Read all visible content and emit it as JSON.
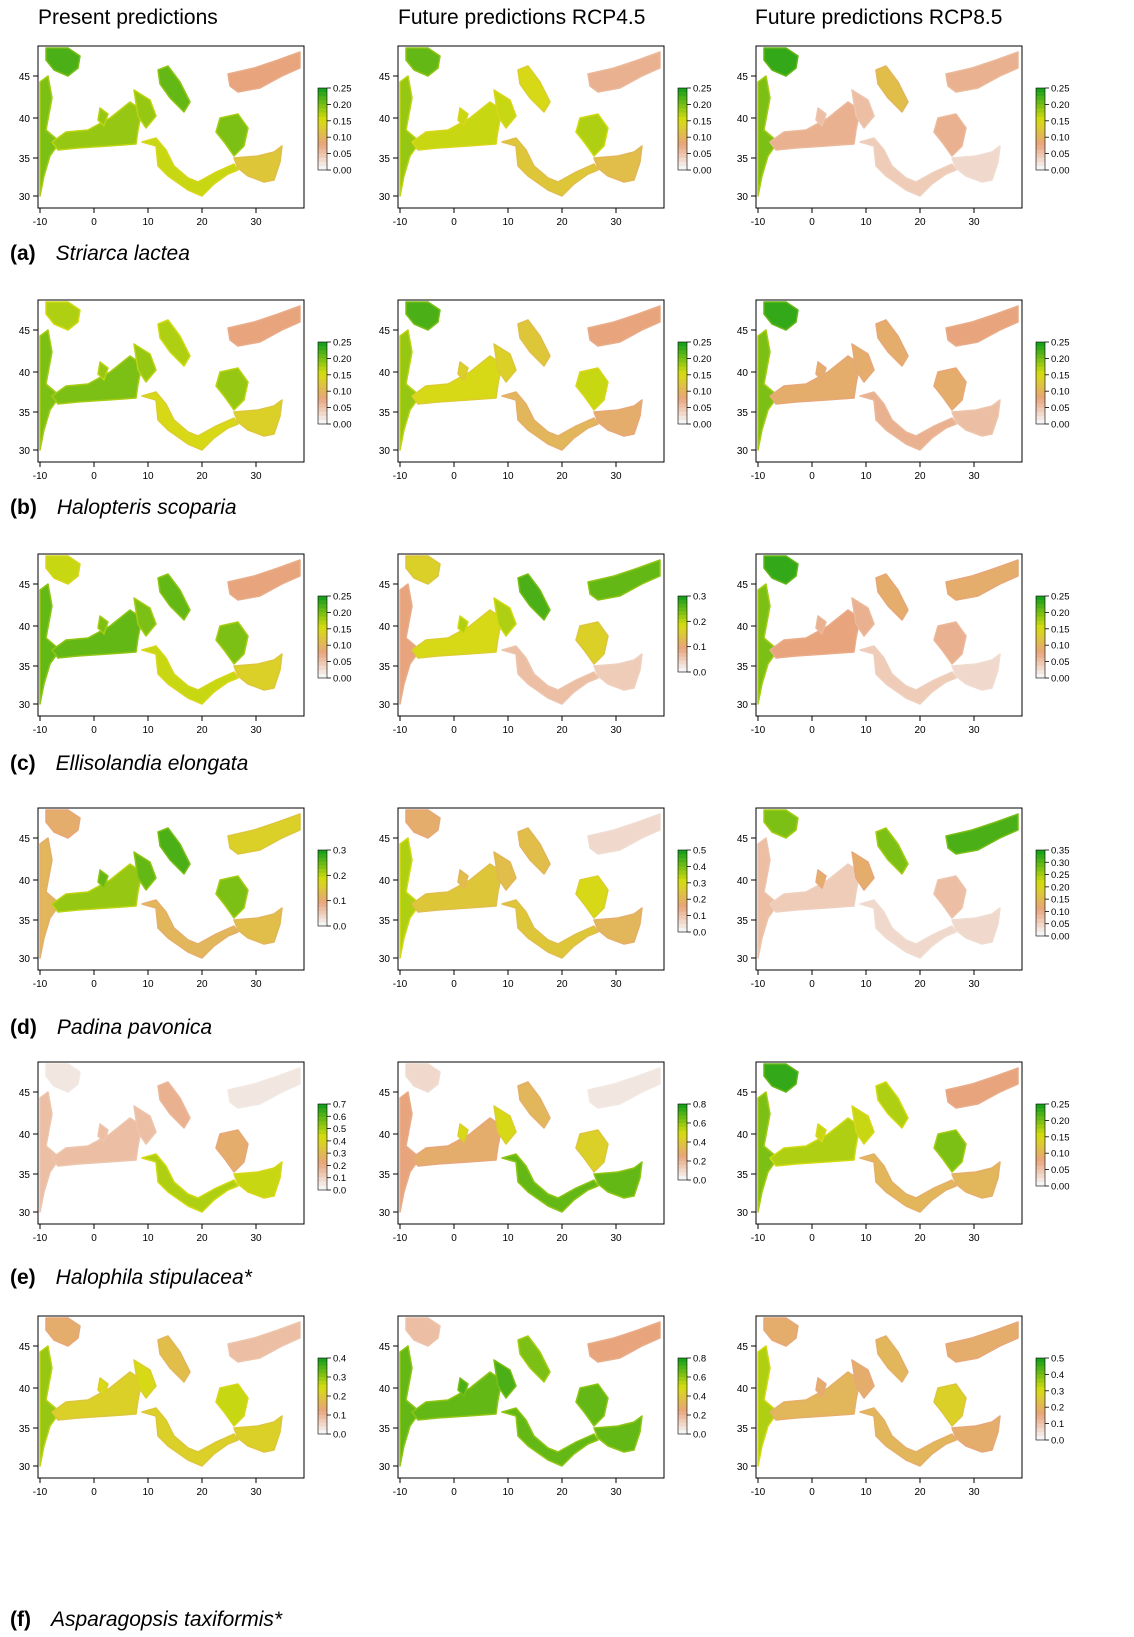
{
  "columns": [
    "Present predictions",
    "Future predictions RCP4.5",
    "Future predictions RCP8.5"
  ],
  "x_ticks": [
    "-10",
    "0",
    "10",
    "20",
    "30"
  ],
  "y_ticks": [
    "30",
    "35",
    "40",
    "45"
  ],
  "colors": {
    "high": "#1aa01a",
    "mid": "#d6dc10",
    "low": "#e8a47c",
    "min": "#f4f4f4"
  },
  "rows": [
    {
      "letter": "(a)",
      "species": "Striarca lactea",
      "panels": [
        {
          "legend_ticks": [
            "0.25",
            "0.20",
            "0.15",
            "0.10",
            "0.05",
            "0.00"
          ],
          "shades": {
            "nw": 0.9,
            "west": 0.8,
            "wm": 0.75,
            "tyr": 0.75,
            "adr": 0.85,
            "aeg": 0.8,
            "bs": 0.3,
            "em": 0.5,
            "south": 0.65
          }
        },
        {
          "legend_ticks": [
            "0.25",
            "0.20",
            "0.15",
            "0.10",
            "0.05",
            "0.00"
          ],
          "shades": {
            "nw": 0.85,
            "west": 0.75,
            "wm": 0.65,
            "tyr": 0.65,
            "adr": 0.6,
            "aeg": 0.7,
            "bs": 0.25,
            "em": 0.45,
            "south": 0.5
          }
        },
        {
          "legend_ticks": [
            "0.25",
            "0.20",
            "0.15",
            "0.10",
            "0.05",
            "0.00"
          ],
          "shades": {
            "nw": 0.95,
            "west": 0.8,
            "wm": 0.25,
            "tyr": 0.2,
            "adr": 0.45,
            "aeg": 0.25,
            "bs": 0.25,
            "em": 0.1,
            "south": 0.15
          }
        }
      ]
    },
    {
      "letter": "(b)",
      "species": "Halopteris scoparia",
      "panels": [
        {
          "legend_ticks": [
            "0.25",
            "0.20",
            "0.15",
            "0.10",
            "0.05",
            "0.00"
          ],
          "shades": {
            "nw": 0.7,
            "west": 0.8,
            "wm": 0.8,
            "tyr": 0.75,
            "adr": 0.7,
            "aeg": 0.75,
            "bs": 0.3,
            "em": 0.55,
            "south": 0.6
          }
        },
        {
          "legend_ticks": [
            "0.25",
            "0.20",
            "0.15",
            "0.10",
            "0.05",
            "0.00"
          ],
          "shades": {
            "nw": 0.9,
            "west": 0.75,
            "wm": 0.6,
            "tyr": 0.55,
            "adr": 0.5,
            "aeg": 0.65,
            "bs": 0.3,
            "em": 0.35,
            "south": 0.4
          }
        },
        {
          "legend_ticks": [
            "0.25",
            "0.20",
            "0.15",
            "0.10",
            "0.05",
            "0.00"
          ],
          "shades": {
            "nw": 0.95,
            "west": 0.8,
            "wm": 0.35,
            "tyr": 0.35,
            "adr": 0.35,
            "aeg": 0.35,
            "bs": 0.3,
            "em": 0.2,
            "south": 0.25
          }
        }
      ]
    },
    {
      "letter": "(c)",
      "species": "Ellisolandia elongata",
      "panels": [
        {
          "legend_ticks": [
            "0.25",
            "0.20",
            "0.15",
            "0.10",
            "0.05",
            "0.00"
          ],
          "shades": {
            "nw": 0.65,
            "west": 0.85,
            "wm": 0.85,
            "tyr": 0.8,
            "adr": 0.85,
            "aeg": 0.8,
            "bs": 0.3,
            "em": 0.55,
            "south": 0.65
          }
        },
        {
          "legend_ticks": [
            "0.3",
            "0.2",
            "0.1",
            "0.0"
          ],
          "shades": {
            "nw": 0.55,
            "west": 0.3,
            "wm": 0.6,
            "tyr": 0.7,
            "adr": 0.9,
            "aeg": 0.55,
            "bs": 0.85,
            "em": 0.15,
            "south": 0.2
          }
        },
        {
          "legend_ticks": [
            "0.25",
            "0.20",
            "0.15",
            "0.10",
            "0.05",
            "0.00"
          ],
          "shades": {
            "nw": 0.95,
            "west": 0.8,
            "wm": 0.3,
            "tyr": 0.25,
            "adr": 0.35,
            "aeg": 0.25,
            "bs": 0.35,
            "em": 0.1,
            "south": 0.15
          }
        }
      ]
    },
    {
      "letter": "(d)",
      "species": "Padina pavonica",
      "panels": [
        {
          "legend_ticks": [
            "0.3",
            "0.2",
            "0.1",
            "0.0"
          ],
          "shades": {
            "nw": 0.35,
            "west": 0.4,
            "wm": 0.75,
            "tyr": 0.85,
            "adr": 0.9,
            "aeg": 0.8,
            "bs": 0.55,
            "em": 0.45,
            "south": 0.4
          }
        },
        {
          "legend_ticks": [
            "0.5",
            "0.4",
            "0.3",
            "0.2",
            "0.1",
            "0.0"
          ],
          "shades": {
            "nw": 0.35,
            "west": 0.7,
            "wm": 0.5,
            "tyr": 0.45,
            "adr": 0.45,
            "aeg": 0.6,
            "bs": 0.1,
            "em": 0.4,
            "south": 0.5
          }
        },
        {
          "legend_ticks": [
            "0.35",
            "0.30",
            "0.25",
            "0.20",
            "0.15",
            "0.10",
            "0.05",
            "0.00"
          ],
          "shades": {
            "nw": 0.8,
            "west": 0.2,
            "wm": 0.15,
            "tyr": 0.35,
            "adr": 0.8,
            "aeg": 0.2,
            "bs": 0.9,
            "em": 0.1,
            "south": 0.1
          }
        }
      ]
    },
    {
      "letter": "(e)",
      "species": "Halophila stipulacea*",
      "panels": [
        {
          "legend_ticks": [
            "0.7",
            "0.6",
            "0.5",
            "0.4",
            "0.3",
            "0.2",
            "0.1",
            "0.0"
          ],
          "shades": {
            "nw": 0.05,
            "west": 0.2,
            "wm": 0.2,
            "tyr": 0.2,
            "adr": 0.25,
            "aeg": 0.35,
            "bs": 0.05,
            "em": 0.65,
            "south": 0.7
          }
        },
        {
          "legend_ticks": [
            "0.8",
            "0.6",
            "0.4",
            "0.2",
            "0.0"
          ],
          "shades": {
            "nw": 0.1,
            "west": 0.3,
            "wm": 0.35,
            "tyr": 0.6,
            "adr": 0.4,
            "aeg": 0.55,
            "bs": 0.05,
            "em": 0.85,
            "south": 0.85
          }
        },
        {
          "legend_ticks": [
            "0.25",
            "0.20",
            "0.15",
            "0.10",
            "0.05",
            "0.00"
          ],
          "shades": {
            "nw": 0.95,
            "west": 0.8,
            "wm": 0.7,
            "tyr": 0.65,
            "adr": 0.7,
            "aeg": 0.8,
            "bs": 0.3,
            "em": 0.4,
            "south": 0.4
          }
        }
      ]
    },
    {
      "letter": "(f)",
      "species": "Asparagopsis taxiformis*",
      "panels": [
        {
          "legend_ticks": [
            "0.4",
            "0.3",
            "0.2",
            "0.1",
            "0.0"
          ],
          "shades": {
            "nw": 0.35,
            "west": 0.75,
            "wm": 0.55,
            "tyr": 0.6,
            "adr": 0.45,
            "aeg": 0.65,
            "bs": 0.2,
            "em": 0.55,
            "south": 0.55
          }
        },
        {
          "legend_ticks": [
            "0.8",
            "0.6",
            "0.4",
            "0.2",
            "0.0"
          ],
          "shades": {
            "nw": 0.2,
            "west": 0.85,
            "wm": 0.85,
            "tyr": 0.9,
            "adr": 0.8,
            "aeg": 0.85,
            "bs": 0.3,
            "em": 0.85,
            "south": 0.85
          }
        },
        {
          "legend_ticks": [
            "0.5",
            "0.4",
            "0.3",
            "0.2",
            "0.1",
            "0.0"
          ],
          "shades": {
            "nw": 0.35,
            "west": 0.7,
            "wm": 0.4,
            "tyr": 0.35,
            "adr": 0.4,
            "aeg": 0.55,
            "bs": 0.35,
            "em": 0.35,
            "south": 0.4
          }
        }
      ]
    }
  ]
}
